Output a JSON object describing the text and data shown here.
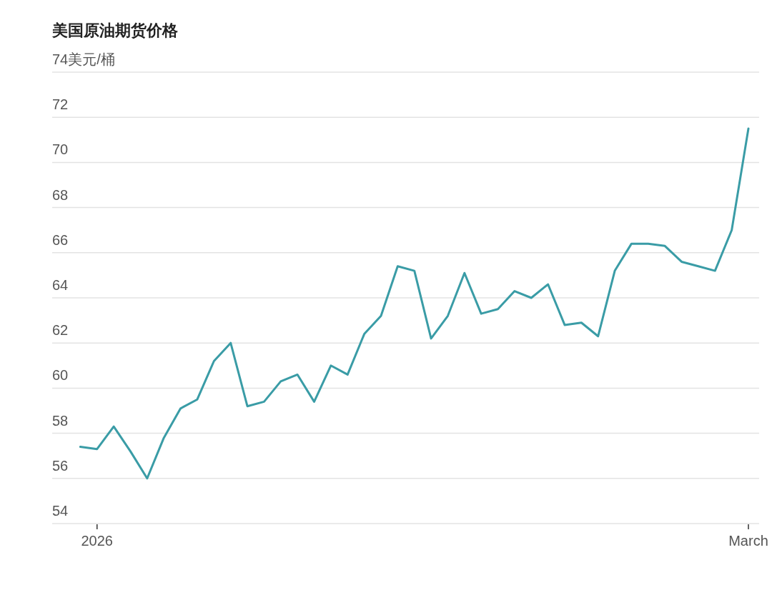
{
  "chart_data": {
    "type": "line",
    "title": "美国原油期货价格",
    "categories": [
      null,
      "2026",
      null,
      null,
      null,
      null,
      null,
      null,
      null,
      null,
      null,
      null,
      null,
      null,
      null,
      null,
      null,
      null,
      null,
      null,
      null,
      null,
      null,
      null,
      null,
      null,
      null,
      null,
      null,
      null,
      null,
      null,
      null,
      null,
      null,
      null,
      null,
      null,
      null,
      null,
      "March"
    ],
    "series": [
      {
        "color": "#3a9ca6",
        "values": [
          57.4,
          57.3,
          58.3,
          57.2,
          56.0,
          57.8,
          59.1,
          59.5,
          61.2,
          62.0,
          59.2,
          59.4,
          60.3,
          60.6,
          59.4,
          61.0,
          60.6,
          62.4,
          63.2,
          65.4,
          65.2,
          62.2,
          63.2,
          65.1,
          63.3,
          63.5,
          64.3,
          64.0,
          64.6,
          62.8,
          62.9,
          62.3,
          65.2,
          66.4,
          66.4,
          66.3,
          65.6,
          65.4,
          65.2,
          67.0,
          71.5
        ]
      }
    ],
    "ylim": [
      54,
      74
    ],
    "yticks": [
      54,
      56,
      58,
      60,
      62,
      64,
      66,
      68,
      70,
      72,
      {
        "value": 74,
        "label": "74美元/桶"
      }
    ],
    "grid": "y"
  }
}
